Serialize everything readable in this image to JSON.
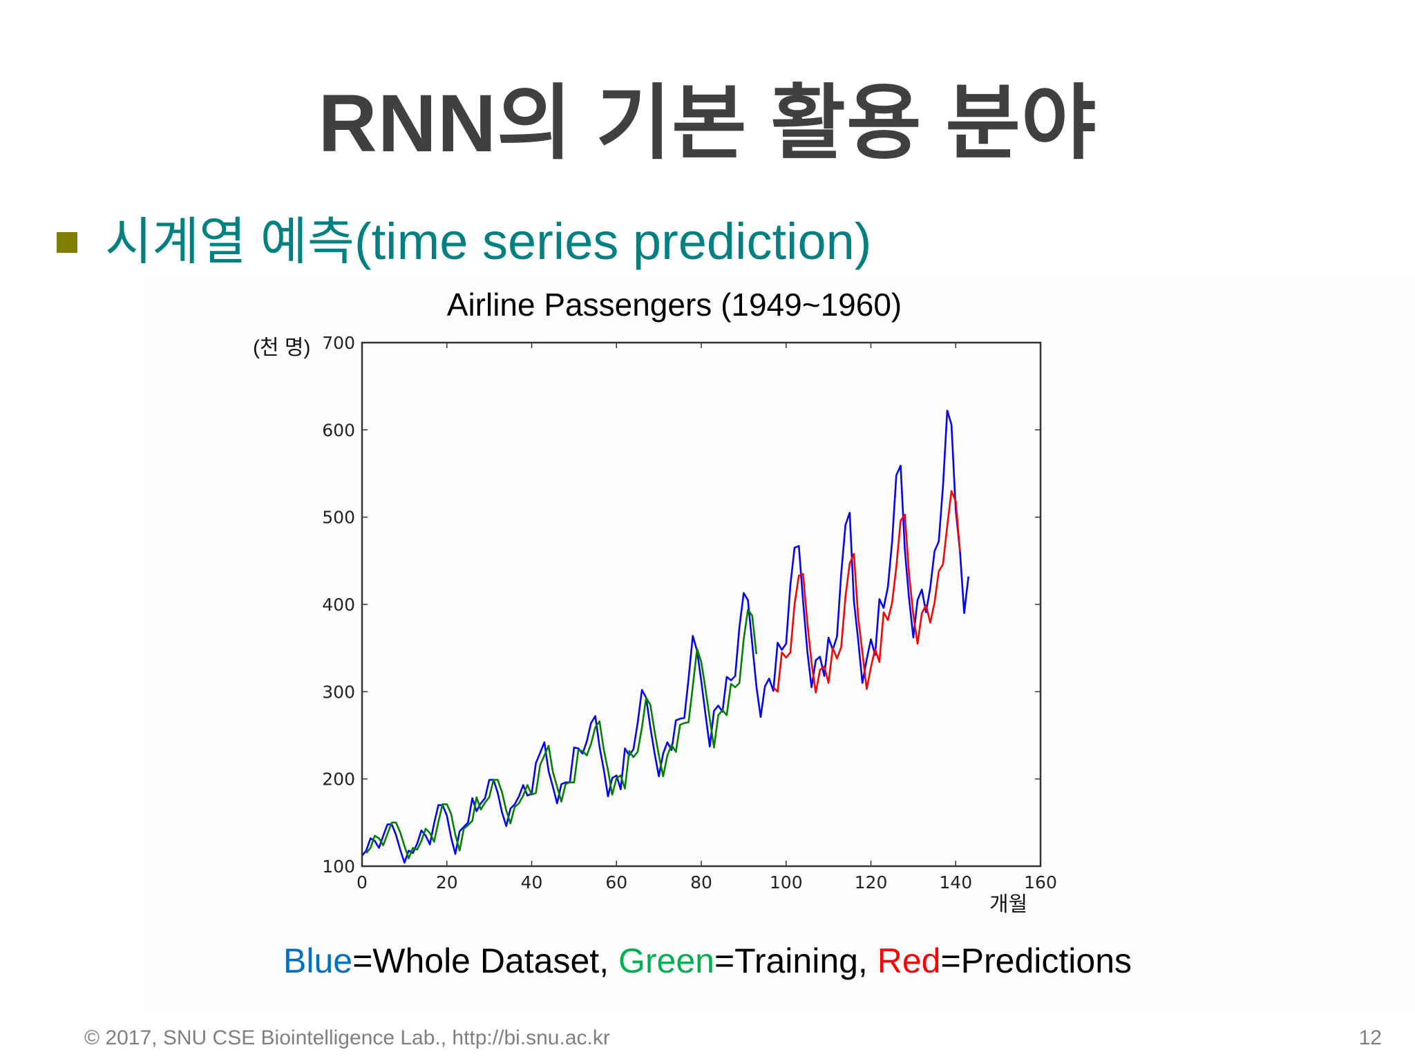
{
  "slide": {
    "title": "RNN의 기본 활용 분야",
    "bullet": {
      "text": "시계열 예측(time series prediction)",
      "marker_color": "#808000",
      "text_color": "#008080"
    },
    "legend": {
      "blue_word": "Blue",
      "blue_rest": "=Whole Dataset, ",
      "green_word": "Green",
      "green_rest": "=Training, ",
      "red_word": "Red",
      "red_rest": "=Predictions",
      "blue_color": "#0070C0",
      "green_color": "#00B050",
      "red_color": "#FF0000"
    },
    "footer": "©  2017, SNU CSE Biointelligence Lab., http://bi.snu.ac.kr",
    "page_number": "12"
  },
  "chart_data": {
    "type": "line",
    "title": "Airline Passengers (1949~1960)",
    "xlabel": "개월",
    "ylabel": "(천 명)",
    "xlim": [
      0,
      160
    ],
    "ylim": [
      100,
      700
    ],
    "xticks": [
      0,
      20,
      40,
      60,
      80,
      100,
      120,
      140,
      160
    ],
    "yticks": [
      100,
      200,
      300,
      400,
      500,
      600,
      700
    ],
    "grid": false,
    "legend_position": "below (caption text)",
    "series": [
      {
        "name": "Whole Dataset",
        "color": "#0000ff",
        "x_start": 0,
        "values": [
          112,
          118,
          132,
          129,
          121,
          135,
          148,
          148,
          136,
          119,
          104,
          118,
          115,
          126,
          141,
          135,
          125,
          149,
          170,
          170,
          158,
          133,
          114,
          140,
          145,
          150,
          178,
          163,
          172,
          178,
          199,
          199,
          184,
          162,
          146,
          166,
          171,
          180,
          193,
          181,
          183,
          218,
          230,
          242,
          209,
          191,
          172,
          194,
          196,
          196,
          236,
          235,
          229,
          243,
          264,
          272,
          237,
          211,
          180,
          201,
          204,
          188,
          235,
          227,
          234,
          264,
          302,
          293,
          259,
          229,
          203,
          229,
          242,
          233,
          267,
          269,
          270,
          315,
          364,
          347,
          312,
          274,
          237,
          278,
          284,
          277,
          317,
          313,
          318,
          374,
          413,
          405,
          355,
          306,
          271,
          306,
          315,
          301,
          356,
          348,
          355,
          422,
          465,
          467,
          404,
          347,
          305,
          336,
          340,
          318,
          362,
          348,
          363,
          435,
          491,
          505,
          404,
          359,
          310,
          337,
          360,
          342,
          406,
          396,
          420,
          472,
          548,
          559,
          463,
          407,
          362,
          405,
          417,
          391,
          419,
          461,
          472,
          535,
          622,
          606,
          508,
          461,
          390,
          432
        ]
      },
      {
        "name": "Training",
        "color": "#008000",
        "x_start": 1,
        "values": [
          115,
          121,
          135,
          132,
          124,
          137,
          150,
          150,
          139,
          123,
          109,
          121,
          119,
          129,
          143,
          138,
          128,
          151,
          171,
          171,
          160,
          136,
          118,
          143,
          147,
          152,
          179,
          165,
          173,
          179,
          199,
          199,
          185,
          164,
          149,
          168,
          172,
          181,
          193,
          182,
          184,
          216,
          227,
          238,
          208,
          191,
          174,
          194,
          196,
          196,
          233,
          232,
          227,
          240,
          259,
          266,
          234,
          210,
          182,
          201,
          204,
          189,
          232,
          225,
          231,
          259,
          293,
          285,
          254,
          227,
          203,
          227,
          239,
          231,
          262,
          264,
          265,
          306,
          349,
          334,
          303,
          269,
          236,
          273,
          279,
          273,
          309,
          305,
          310,
          360,
          394,
          387,
          343
        ]
      },
      {
        "name": "Predictions",
        "color": "#ff0000",
        "x_start": 97,
        "values": [
          305,
          300,
          345,
          339,
          345,
          400,
          433,
          435,
          380,
          333,
          299,
          325,
          329,
          310,
          350,
          338,
          351,
          409,
          447,
          458,
          385,
          345,
          303,
          328,
          349,
          334,
          391,
          382,
          402,
          443,
          496,
          503,
          435,
          388,
          355,
          390,
          399,
          379,
          402,
          438,
          446,
          490,
          530,
          518,
          461
        ]
      }
    ]
  }
}
